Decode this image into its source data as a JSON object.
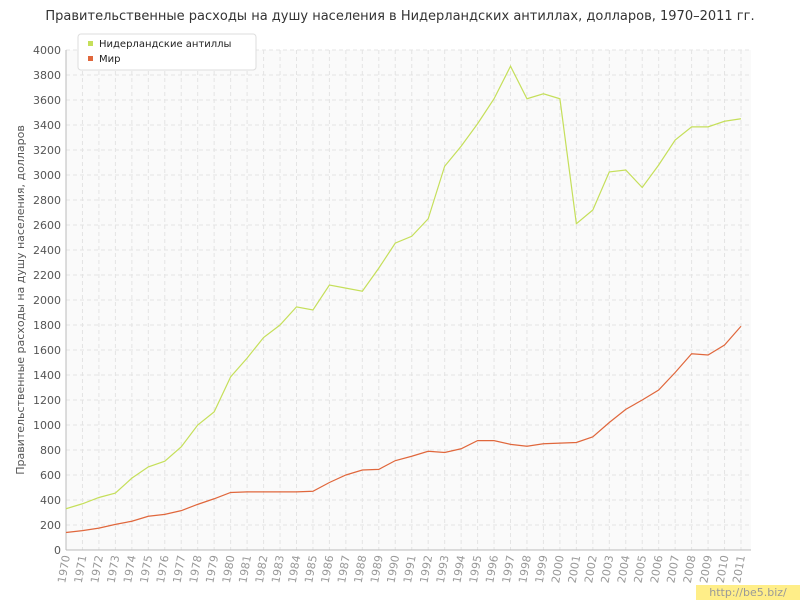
{
  "chart_data": {
    "type": "line",
    "title": "Правительственные расходы на душу населения в Нидерландских антиллах, долларов, 1970–2011 гг.",
    "ylabel": "Правительственные расходы на душу населения, долларов",
    "watermark": "http://be5.biz/",
    "x": [
      1970,
      1971,
      1972,
      1973,
      1974,
      1975,
      1976,
      1977,
      1978,
      1979,
      1980,
      1981,
      1982,
      1983,
      1984,
      1985,
      1986,
      1987,
      1988,
      1989,
      1990,
      1991,
      1992,
      1993,
      1994,
      1995,
      1996,
      1997,
      1998,
      1999,
      2000,
      2001,
      2002,
      2003,
      2004,
      2005,
      2006,
      2007,
      2008,
      2009,
      2010,
      2011
    ],
    "xlim": [
      1970,
      2011
    ],
    "xticks": [
      1970,
      1971,
      1972,
      1973,
      1974,
      1975,
      1976,
      1977,
      1978,
      1979,
      1980,
      1981,
      1982,
      1983,
      1984,
      1985,
      1986,
      1987,
      1988,
      1989,
      1990,
      1991,
      1992,
      1993,
      1994,
      1995,
      1996,
      1997,
      1998,
      1999,
      2000,
      2001,
      2002,
      2003,
      2004,
      2005,
      2006,
      2007,
      2008,
      2009,
      2010,
      2011
    ],
    "ylim": [
      0,
      4000
    ],
    "yticks": [
      0,
      200,
      400,
      600,
      800,
      1000,
      1200,
      1400,
      1600,
      1800,
      2000,
      2200,
      2400,
      2600,
      2800,
      3000,
      3200,
      3400,
      3600,
      3800,
      4000
    ],
    "grid": true,
    "legend": "top-left",
    "series": [
      {
        "name": "Нидерландские антиллы",
        "color": "#c5df5a",
        "values": [
          330,
          370,
          420,
          455,
          575,
          665,
          710,
          825,
          1000,
          1105,
          1385,
          1535,
          1700,
          1800,
          1945,
          1920,
          2120,
          2095,
          2070,
          2255,
          2455,
          2510,
          2650,
          3070,
          3230,
          3410,
          3610,
          3870,
          3610,
          3650,
          3610,
          2610,
          2720,
          3025,
          3040,
          2900,
          3080,
          3280,
          3385,
          3385,
          3430,
          3450
        ]
      },
      {
        "name": "Мир",
        "color": "#e0673c",
        "values": [
          140,
          155,
          175,
          205,
          230,
          270,
          285,
          315,
          365,
          410,
          460,
          465,
          465,
          465,
          465,
          470,
          540,
          600,
          640,
          645,
          715,
          750,
          790,
          780,
          810,
          875,
          875,
          845,
          830,
          850,
          855,
          860,
          905,
          1020,
          1125,
          1200,
          1280,
          1420,
          1570,
          1560,
          1640,
          1790
        ]
      }
    ]
  }
}
